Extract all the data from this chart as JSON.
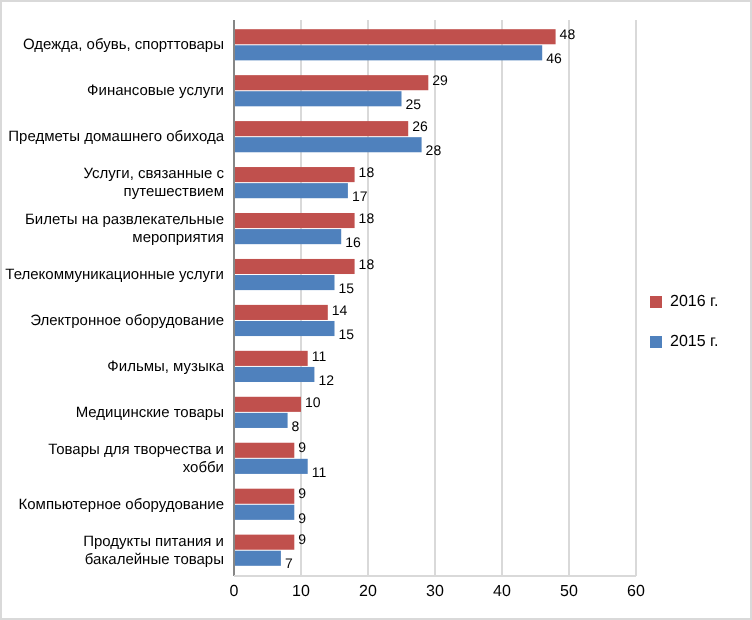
{
  "chart_data": {
    "type": "bar",
    "orientation": "horizontal",
    "categories": [
      "Одежда, обувь, спорттовары",
      "Финансовые услуги",
      "Предметы домашнего обихода",
      "Услуги, связанные с путешествием",
      "Билеты на развлекательные мероприятия",
      "Телекоммуникационные услуги",
      "Электронное оборудование",
      "Фильмы, музыка",
      "Медицинские товары",
      "Товары для творчества и хобби",
      "Компьютерное оборудование",
      "Продукты питания и бакалейные товары"
    ],
    "series": [
      {
        "name": "2016 г.",
        "color": "#c0504d",
        "values": [
          48,
          29,
          26,
          18,
          18,
          18,
          14,
          11,
          10,
          9,
          9,
          9
        ]
      },
      {
        "name": "2015 г.",
        "color": "#4f81bd",
        "values": [
          46,
          25,
          28,
          17,
          16,
          15,
          15,
          12,
          8,
          11,
          9,
          7
        ]
      }
    ],
    "xlim": [
      0,
      60
    ],
    "xticks": [
      0,
      10,
      20,
      30,
      40,
      50,
      60
    ],
    "grid": "x",
    "legend": "right",
    "data_labels": true
  }
}
